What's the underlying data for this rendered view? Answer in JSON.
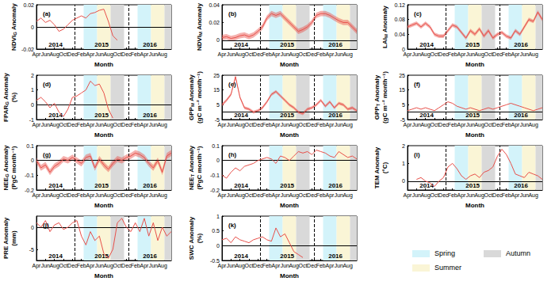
{
  "x_axis": {
    "label": "Month",
    "categories": [
      "Apr",
      null,
      "Jun",
      null,
      "Aug",
      null,
      "Oct",
      null,
      "Dec",
      null,
      "Feb",
      null,
      "Apr",
      null,
      "Jun",
      null,
      "Aug",
      null,
      "Oct",
      null,
      "Dec",
      null,
      "Feb",
      null,
      "Apr",
      null,
      "Jun",
      null,
      "Aug",
      null,
      "Oct"
    ]
  },
  "years": [
    "2014",
    "2015",
    "2016"
  ],
  "dividers": [
    8.5,
    20.5
  ],
  "seasons": [
    {
      "name": "Spring",
      "color": "#d3f3fa",
      "spans": [
        [
          10.5,
          13.5
        ],
        [
          22.5,
          25.5
        ]
      ]
    },
    {
      "name": "Summer",
      "color": "#faf5d6",
      "spans": [
        [
          13.5,
          16.5
        ],
        [
          25.5,
          28.5
        ]
      ]
    },
    {
      "name": "Autumn",
      "color": "#d9d9d9",
      "spans": [
        [
          16.5,
          19.5
        ],
        [
          28.5,
          30
        ]
      ]
    }
  ],
  "chart_data": [
    {
      "type": "line",
      "label": "(a)",
      "ylabel": [
        {
          "text": "NDVI"
        },
        {
          "text": "G",
          "sub": true
        },
        {
          "text": " Anomaly"
        }
      ],
      "ylim": [
        -0.02,
        0.02
      ],
      "yticks": [
        -0.02,
        0,
        0.02
      ],
      "hlines": [
        0
      ],
      "series": [
        {
          "color": "#e8504a",
          "values": [
            0.005,
            0.008,
            0.004,
            0.006,
            0.002,
            -0.004,
            -0.002,
            0.002,
            0.006,
            0.008,
            0.01,
            0.008,
            0.012,
            0.013,
            0.015,
            0.016,
            0.005,
            -0.008,
            -0.012,
            null,
            null,
            null,
            null,
            null,
            null,
            null,
            null,
            null,
            null,
            null,
            null
          ]
        }
      ]
    },
    {
      "type": "line",
      "label": "(b)",
      "ylabel": [
        {
          "text": "NDVI"
        },
        {
          "text": "M",
          "sub": true
        },
        {
          "text": " Anomaly"
        }
      ],
      "ylim": [
        -0.01,
        0.04
      ],
      "yticks": [
        0,
        0.02,
        0.04
      ],
      "hlines": [
        0
      ],
      "series": [
        {
          "color": "#e8504a",
          "values": [
            0.003,
            0.004,
            0.002,
            0.003,
            0.005,
            0.006,
            0.004,
            0.006,
            0.01,
            0.015,
            0.025,
            0.03,
            0.028,
            0.03,
            0.025,
            0.02,
            0.015,
            0.01,
            0.012,
            0.015,
            0.02,
            0.028,
            0.03,
            0.03,
            0.028,
            0.025,
            0.022,
            0.02,
            0.02,
            0.015,
            0.01
          ],
          "lower": [
            0,
            0.001,
            -0.001,
            0,
            0.002,
            0.003,
            0.001,
            0.003,
            0.007,
            0.012,
            0.022,
            0.027,
            0.025,
            0.027,
            0.022,
            0.017,
            0.012,
            0.007,
            0.009,
            0.012,
            0.017,
            0.025,
            0.027,
            0.027,
            0.025,
            0.022,
            0.019,
            0.017,
            0.017,
            0.012,
            0.007
          ],
          "upper": [
            0.006,
            0.007,
            0.005,
            0.006,
            0.008,
            0.009,
            0.007,
            0.009,
            0.013,
            0.018,
            0.028,
            0.033,
            0.031,
            0.033,
            0.028,
            0.023,
            0.018,
            0.013,
            0.015,
            0.018,
            0.023,
            0.031,
            0.033,
            0.033,
            0.031,
            0.028,
            0.025,
            0.023,
            0.023,
            0.018,
            0.013
          ]
        }
      ]
    },
    {
      "type": "line",
      "label": "(c)",
      "ylabel": [
        {
          "text": "LAI"
        },
        {
          "text": "M",
          "sub": true
        },
        {
          "text": " Anomaly"
        }
      ],
      "ylim": [
        0,
        0.12
      ],
      "yticks": [
        0,
        0.04,
        0.08,
        0.12
      ],
      "hlines": [
        0
      ],
      "series": [
        {
          "color": "#e8504a",
          "values": [
            0.06,
            0.065,
            0.07,
            0.06,
            0.07,
            0.06,
            0.04,
            0.035,
            0.035,
            0.05,
            0.065,
            0.06,
            0.045,
            0.03,
            0.05,
            0.04,
            0.055,
            0.035,
            0.05,
            0.03,
            0.04,
            0.045,
            0.035,
            0.03,
            0.05,
            0.04,
            0.06,
            0.08,
            0.075,
            0.1,
            0.08
          ],
          "lower": [
            0.055,
            0.06,
            0.065,
            0.055,
            0.065,
            0.055,
            0.035,
            0.03,
            0.03,
            0.045,
            0.06,
            0.055,
            0.04,
            0.025,
            0.045,
            0.035,
            0.05,
            0.03,
            0.045,
            0.025,
            0.035,
            0.04,
            0.03,
            0.025,
            0.045,
            0.035,
            0.055,
            0.075,
            0.07,
            0.095,
            0.075
          ],
          "upper": [
            0.065,
            0.07,
            0.075,
            0.065,
            0.075,
            0.065,
            0.045,
            0.04,
            0.04,
            0.055,
            0.07,
            0.065,
            0.05,
            0.035,
            0.055,
            0.045,
            0.06,
            0.04,
            0.055,
            0.035,
            0.045,
            0.05,
            0.04,
            0.035,
            0.055,
            0.045,
            0.065,
            0.085,
            0.08,
            0.105,
            0.085
          ]
        }
      ]
    },
    {
      "type": "line",
      "label": "(d)",
      "ylabel": [
        {
          "text": "FPAR"
        },
        {
          "text": "G",
          "sub": true
        },
        {
          "text": " Anomaly"
        }
      ],
      "yunit": "(%)",
      "ylim": [
        -1,
        2
      ],
      "yticks": [
        -1,
        0,
        1,
        2
      ],
      "hlines": [
        0
      ],
      "series": [
        {
          "color": "#e8504a",
          "values": [
            0.3,
            0.5,
            0.2,
            -0.2,
            0.1,
            -0.5,
            -0.8,
            -0.3,
            0.5,
            0.6,
            0.8,
            1,
            1.6,
            1.3,
            1.4,
            0.8,
            -0.3,
            -0.9,
            null,
            null,
            null,
            null,
            null,
            null,
            null,
            null,
            null,
            null,
            null,
            null,
            null
          ]
        }
      ]
    },
    {
      "type": "line",
      "label": "(e)",
      "ylabel": [
        {
          "text": "GPP"
        },
        {
          "text": "M",
          "sub": true
        },
        {
          "text": " Anomaly"
        }
      ],
      "yunit": "(gC m⁻² month⁻¹)",
      "ylim": [
        -5,
        25
      ],
      "yticks": [
        -5,
        5,
        15,
        25
      ],
      "hlines": [
        0
      ],
      "series": [
        {
          "color": "#e8504a",
          "values": [
            5,
            8,
            12,
            24,
            10,
            3,
            2,
            0,
            1,
            3,
            7,
            12,
            14,
            11,
            8,
            5,
            3,
            0,
            -1,
            2,
            3,
            5,
            8,
            4,
            7,
            3,
            6,
            5,
            2,
            3,
            1
          ],
          "lower": [
            4,
            7,
            11,
            23,
            9,
            2,
            1,
            -1,
            0,
            2,
            6,
            11,
            13,
            10,
            7,
            4,
            2,
            -1,
            -2,
            1,
            2,
            4,
            7,
            3,
            6,
            2,
            5,
            4,
            1,
            2,
            0
          ],
          "upper": [
            6,
            9,
            13,
            25,
            11,
            4,
            3,
            1,
            2,
            4,
            8,
            13,
            15,
            12,
            9,
            6,
            4,
            1,
            0,
            3,
            4,
            6,
            9,
            5,
            8,
            4,
            7,
            6,
            3,
            4,
            2
          ]
        }
      ]
    },
    {
      "type": "line",
      "label": "(f)",
      "ylabel": [
        {
          "text": "GPP"
        },
        {
          "text": "T",
          "sub": true
        },
        {
          "text": " Anomaly"
        }
      ],
      "yunit": "(gC m⁻² month⁻¹)",
      "ylim": [
        -5,
        25
      ],
      "yticks": [
        -5,
        5,
        15,
        25
      ],
      "hlines": [
        0
      ],
      "series": [
        {
          "color": "#e8504a",
          "values": [
            1,
            2,
            3,
            2,
            3,
            2,
            1,
            3,
            5,
            7,
            6,
            4,
            3,
            2,
            3,
            2,
            1,
            2,
            3,
            2,
            3,
            4,
            5,
            6,
            5,
            4,
            3,
            2,
            1,
            2,
            3
          ]
        }
      ]
    },
    {
      "type": "line",
      "label": "(g)",
      "ylabel": [
        {
          "text": "NEE"
        },
        {
          "text": "G",
          "sub": true
        },
        {
          "text": " Anomaly"
        }
      ],
      "yunit": "(PgC month⁻¹)",
      "ylim": [
        -0.2,
        0.1
      ],
      "yticks": [
        -0.2,
        -0.1,
        0,
        0.1
      ],
      "hlines": [
        0
      ],
      "series": [
        {
          "color": "#e8504a",
          "values": [
            0,
            -0.05,
            -0.03,
            -0.08,
            -0.04,
            -0.02,
            0.01,
            0,
            0.02,
            0,
            -0.02,
            0.02,
            0.03,
            -0.05,
            0.01,
            -0.03,
            -0.06,
            -0.02,
            0.01,
            0,
            0.02,
            0.03,
            0.05,
            0.04,
            0.02,
            -0.02,
            -0.05,
            0,
            -0.08,
            0.03,
            0.05
          ],
          "lower": [
            -0.02,
            -0.07,
            -0.05,
            -0.1,
            -0.06,
            -0.04,
            -0.01,
            -0.02,
            0,
            -0.02,
            -0.04,
            0,
            0.01,
            -0.07,
            -0.01,
            -0.05,
            -0.08,
            -0.04,
            -0.01,
            -0.02,
            0,
            0.01,
            0.03,
            0.02,
            0,
            -0.04,
            -0.07,
            -0.02,
            -0.1,
            0.01,
            0.03
          ],
          "upper": [
            0.02,
            -0.03,
            -0.01,
            -0.06,
            -0.02,
            0,
            0.03,
            0.02,
            0.04,
            0.02,
            0,
            0.04,
            0.05,
            -0.03,
            0.03,
            -0.01,
            -0.04,
            0,
            0.03,
            0.02,
            0.04,
            0.05,
            0.07,
            0.06,
            0.04,
            0,
            -0.03,
            0.02,
            -0.06,
            0.05,
            0.07
          ]
        }
      ]
    },
    {
      "type": "line",
      "label": "(h)",
      "ylabel": [
        {
          "text": "NEE"
        },
        {
          "text": "T",
          "sub": true
        },
        {
          "text": " Anomaly"
        }
      ],
      "yunit": "(PgC month⁻¹)",
      "ylim": [
        -0.2,
        0.1
      ],
      "yticks": [
        -0.2,
        -0.1,
        0,
        0.1
      ],
      "hlines": [
        0
      ],
      "series": [
        {
          "color": "#e8504a",
          "values": [
            -0.1,
            -0.12,
            -0.08,
            -0.05,
            -0.07,
            -0.04,
            -0.03,
            -0.02,
            0,
            0.01,
            0.02,
            0.01,
            -0.02,
            0.03,
            0.02,
            0,
            0.03,
            0.06,
            0.05,
            0.06,
            0.04,
            0.07,
            0.06,
            0.05,
            0.03,
            0.02,
            0.06,
            0.04,
            0.02,
            0.03,
            0.01
          ]
        }
      ]
    },
    {
      "type": "line",
      "label": "(i)",
      "ylabel": [
        {
          "text": "TEM Anomaly"
        }
      ],
      "yunit": "(°C)",
      "ylim": [
        -0.5,
        2
      ],
      "yticks": [
        0,
        1,
        2
      ],
      "hlines": [
        0
      ],
      "series": [
        {
          "color": "#e8504a",
          "values": [
            null,
            null,
            0.1,
            0.2,
            0,
            -0.1,
            -0.3,
            0,
            0.2,
            0.8,
            1,
            0.7,
            0.3,
            0.1,
            0.3,
            0.4,
            0.2,
            0.5,
            0.6,
            0.8,
            1.4,
            1.8,
            1.5,
            1,
            0.4,
            0.3,
            0.2,
            0.5,
            0.4,
            0.3,
            0.1
          ]
        }
      ]
    },
    {
      "type": "line",
      "label": "(j)",
      "ylabel": [
        {
          "text": "PRE Anomaly"
        }
      ],
      "yunit": "(mm)",
      "ylim": [
        -7.5,
        2.5
      ],
      "yticks": [
        -5,
        0
      ],
      "hlines": [
        0
      ],
      "series": [
        {
          "color": "#e8504a",
          "values": [
            1,
            0,
            1.5,
            -1,
            0.5,
            1,
            -0.5,
            0,
            1,
            1.5,
            -2,
            -4,
            -1,
            -3,
            -2,
            -6,
            -7,
            -5,
            1,
            2,
            0,
            -1,
            1,
            -1,
            2,
            -2,
            1,
            -3,
            0,
            -2,
            -1
          ]
        }
      ]
    },
    {
      "type": "line",
      "label": "(k)",
      "ylabel": [
        {
          "text": "SWC Anomaly"
        }
      ],
      "yunit": "(%)",
      "ylim": [
        -0.5,
        1
      ],
      "yticks": [
        -0.5,
        0,
        0.5,
        1
      ],
      "hlines": [
        0
      ],
      "series": [
        {
          "color": "#e8504a",
          "values": [
            0.2,
            0.25,
            0.1,
            0.3,
            0.2,
            0.15,
            0.1,
            0.2,
            0.25,
            0.3,
            0.2,
            0.15,
            0.6,
            0.3,
            0.4,
            0.1,
            -0.2,
            -0.3,
            -0.4,
            null,
            null,
            null,
            null,
            null,
            null,
            null,
            null,
            null,
            null,
            null,
            null
          ]
        }
      ]
    }
  ]
}
